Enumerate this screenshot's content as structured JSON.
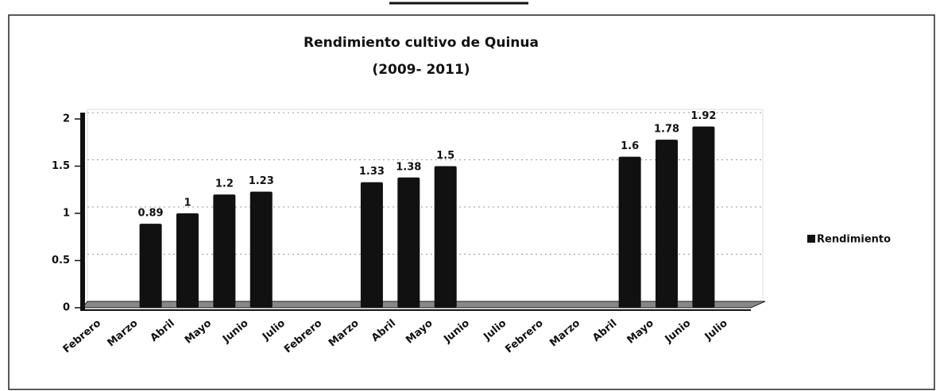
{
  "chart_data": {
    "type": "bar",
    "title": "Rendimiento cultivo de Quinua",
    "subtitle": "(2009- 2011)",
    "categories": [
      "Febrero",
      "Marzo",
      "Abril",
      "Mayo",
      "Junio",
      "Julio",
      "Febrero",
      "Marzo",
      "Abril",
      "Mayo",
      "Junio",
      "Julio",
      "Febrero",
      "Marzo",
      "Abril",
      "Mayo",
      "Junio",
      "Julio"
    ],
    "series": [
      {
        "name": "Rendimiento",
        "color": "#111111",
        "values": [
          null,
          0.89,
          1,
          1.2,
          1.23,
          null,
          null,
          1.33,
          1.38,
          1.5,
          null,
          null,
          null,
          null,
          1.6,
          1.78,
          1.92,
          null
        ]
      }
    ],
    "ylim": [
      0,
      2
    ],
    "yticks": [
      0,
      0.5,
      1,
      1.5,
      2
    ],
    "grid": true,
    "legend": "right"
  }
}
